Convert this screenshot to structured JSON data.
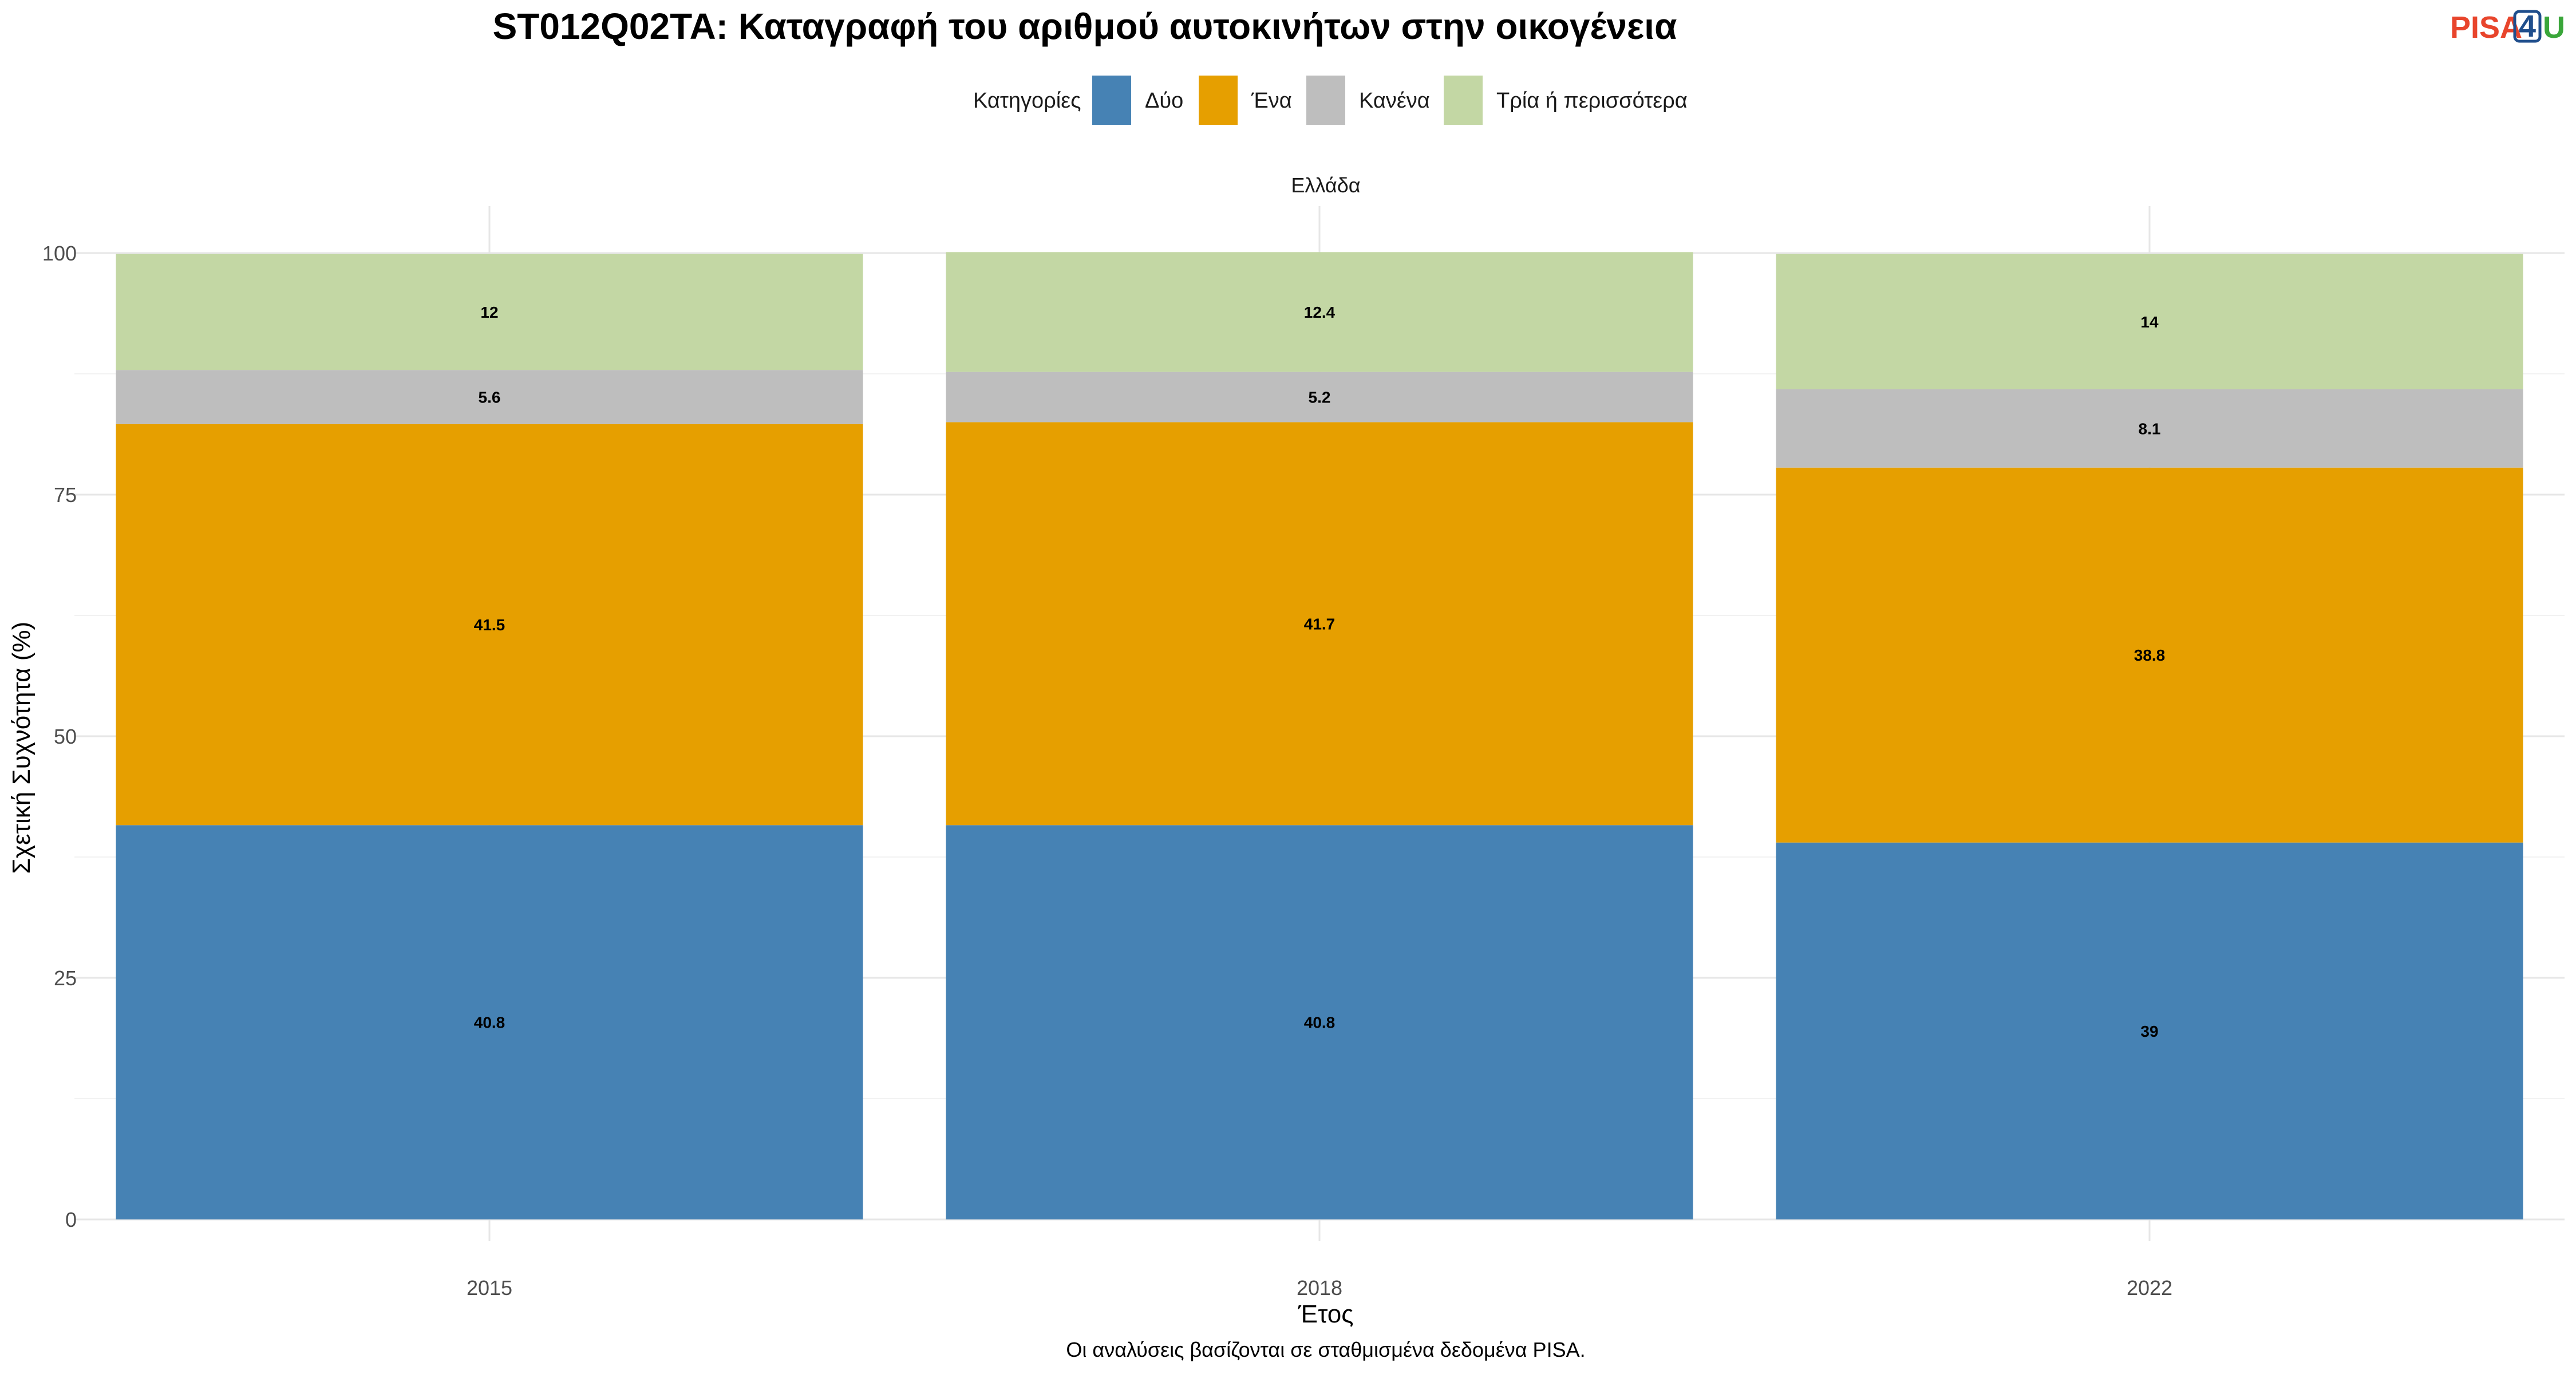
{
  "title": "ST012Q02TA: Καταγραφή του αριθμού αυτοκινήτων στην οικογένεια",
  "logo": {
    "text_left": "PISA",
    "text_middle": "4",
    "text_right": "U",
    "colors": {
      "left": "#e8452c",
      "middle": "#1f4e8c",
      "right": "#3aa63a"
    }
  },
  "legend": {
    "title": "Κατηγορίες"
  },
  "facet_label": "Ελλάδα",
  "caption": "Οι αναλύσεις βασίζονται σε σταθμισμένα δεδομένα PISA.",
  "chart_data": {
    "type": "bar",
    "stacked": true,
    "categories": [
      "2015",
      "2018",
      "2022"
    ],
    "series": [
      {
        "name": "Δύο",
        "color": "#4682b4",
        "values": [
          40.8,
          40.8,
          39
        ]
      },
      {
        "name": "Ένα",
        "color": "#e69f00",
        "values": [
          41.5,
          41.7,
          38.8
        ]
      },
      {
        "name": "Κανένα",
        "color": "#bebebe",
        "values": [
          5.6,
          5.2,
          8.1
        ]
      },
      {
        "name": "Τρία ή περισσότερα",
        "color": "#c3d7a4",
        "values": [
          12,
          12.4,
          14
        ]
      }
    ],
    "stack_order_bottom_to_top": [
      "Δύο",
      "Ένα",
      "Κανένα",
      "Τρία ή περισσότερα"
    ],
    "xlabel": "Έτος",
    "ylabel": "Σχετική Συχνότητα (%)",
    "ylim": [
      0,
      105
    ],
    "yticks": [
      0,
      25,
      50,
      75,
      100
    ],
    "grid": true,
    "legend_position": "top"
  }
}
